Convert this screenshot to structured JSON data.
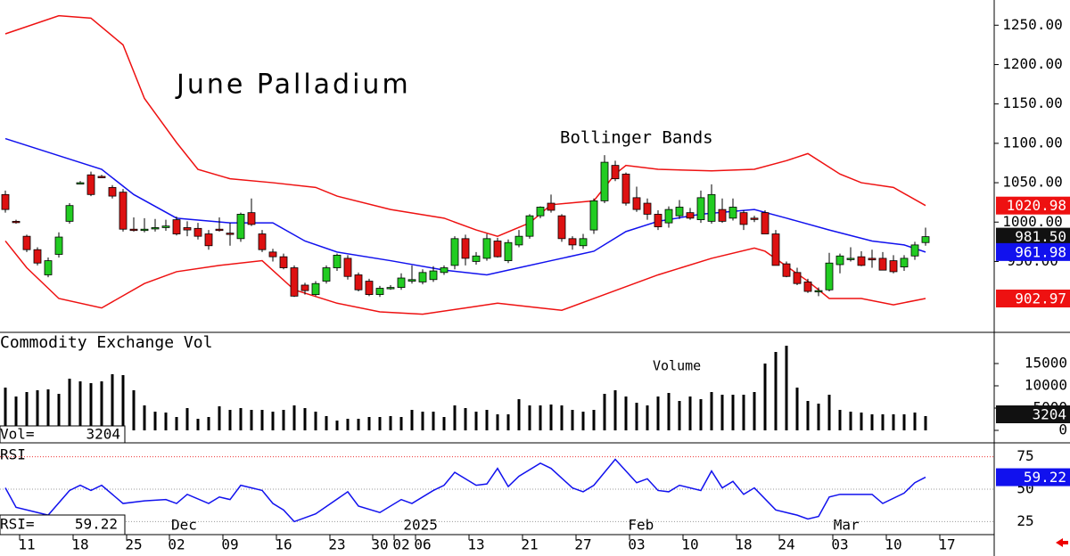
{
  "x_axis": {
    "xlim": [
      -0.5,
      92.5
    ],
    "xticks": [
      {
        "value": 2,
        "label": "11"
      },
      {
        "value": 7,
        "label": "18"
      },
      {
        "value": 12,
        "label": "25"
      },
      {
        "value": 16,
        "label": "02"
      },
      {
        "value": 21,
        "label": "09"
      },
      {
        "value": 26,
        "label": "16"
      },
      {
        "value": 31,
        "label": "23"
      },
      {
        "value": 35,
        "label": "30"
      },
      {
        "value": 37,
        "label": "02"
      },
      {
        "value": 39,
        "label": "06"
      },
      {
        "value": 44,
        "label": "13"
      },
      {
        "value": 49,
        "label": "21"
      },
      {
        "value": 54,
        "label": "27"
      },
      {
        "value": 59,
        "label": "03"
      },
      {
        "value": 64,
        "label": "10"
      },
      {
        "value": 69,
        "label": "18"
      },
      {
        "value": 73,
        "label": "24"
      },
      {
        "value": 78,
        "label": "03"
      },
      {
        "value": 83,
        "label": "10"
      },
      {
        "value": 88,
        "label": "17"
      }
    ],
    "month_labels": [
      {
        "value": 16.7,
        "label": "Dec"
      },
      {
        "value": 38.8,
        "label": "2025"
      },
      {
        "value": 59.4,
        "label": "Feb"
      },
      {
        "value": 78.6,
        "label": "Mar"
      }
    ]
  },
  "chart_data": [
    {
      "type": "candlestick",
      "title": "June Palladium",
      "annotation": "Bollinger Bands",
      "ylim": [
        860,
        1282
      ],
      "yticks": [
        {
          "value": 1250,
          "label": "1250.00"
        },
        {
          "value": 1200,
          "label": "1200.00"
        },
        {
          "value": 1150,
          "label": "1150.00"
        },
        {
          "value": 1100,
          "label": "1100.00"
        },
        {
          "value": 1050,
          "label": "1050.00"
        },
        {
          "value": 1000,
          "label": "1000.00"
        },
        {
          "value": 950,
          "label": "950.00"
        }
      ],
      "up_color": "#22cc22",
      "down_color": "#dd1111",
      "open": [
        1035,
        1001,
        982,
        965,
        933,
        959,
        1001,
        1050,
        1060,
        1058,
        1044,
        1038,
        991,
        990,
        992,
        993,
        1003,
        993,
        992,
        985,
        991,
        986,
        979,
        1012,
        985,
        962,
        956,
        942,
        920,
        908,
        925,
        942,
        954,
        933,
        925,
        908,
        917,
        917,
        925,
        924,
        927,
        936,
        945,
        979,
        950,
        954,
        976,
        951,
        971,
        982,
        1008,
        1024,
        1008,
        979,
        970,
        990,
        1027,
        1072,
        1061,
        1031,
        1024,
        1010,
        999,
        1008,
        1012,
        1003,
        1001,
        1016,
        1005,
        1012,
        1005,
        1012,
        985,
        947,
        936,
        924,
        913,
        914,
        946,
        954,
        956,
        954,
        954,
        951,
        943,
        957,
        974
      ],
      "high": [
        1040,
        1003,
        984,
        968,
        955,
        987,
        1024,
        1052,
        1064,
        1060,
        1047,
        1042,
        1006,
        1005,
        1004,
        1003,
        1007,
        1001,
        999,
        990,
        1006,
        999,
        1012,
        1030,
        990,
        966,
        960,
        945,
        923,
        925,
        945,
        960,
        958,
        936,
        928,
        919,
        920,
        935,
        945,
        940,
        944,
        945,
        982,
        984,
        962,
        985,
        980,
        978,
        990,
        1010,
        1020,
        1035,
        1010,
        982,
        985,
        1030,
        1085,
        1078,
        1063,
        1045,
        1030,
        1015,
        1020,
        1028,
        1018,
        1040,
        1048,
        1030,
        1030,
        1015,
        1008,
        1015,
        990,
        950,
        942,
        928,
        917,
        961,
        960,
        968,
        963,
        965,
        962,
        958,
        958,
        975,
        993
      ],
      "low": [
        1012,
        998,
        962,
        945,
        930,
        955,
        998,
        1048,
        1033,
        1056,
        1030,
        988,
        988,
        987,
        988,
        989,
        983,
        982,
        978,
        965,
        988,
        970,
        975,
        995,
        962,
        950,
        940,
        905,
        908,
        906,
        922,
        938,
        927,
        912,
        906,
        905,
        914,
        914,
        922,
        921,
        924,
        933,
        940,
        945,
        946,
        951,
        955,
        948,
        968,
        979,
        1005,
        1012,
        975,
        965,
        966,
        985,
        1024,
        1052,
        1021,
        1013,
        1003,
        990,
        993,
        1004,
        1003,
        999,
        998,
        999,
        1002,
        990,
        1000,
        985,
        945,
        930,
        920,
        910,
        906,
        912,
        935,
        950,
        944,
        942,
        939,
        935,
        938,
        952,
        970
      ],
      "close": [
        1016,
        1000,
        965,
        948,
        951,
        981,
        1021,
        1050,
        1035,
        1057,
        1033,
        991,
        990,
        991,
        993,
        995,
        985,
        990,
        982,
        970,
        990,
        985,
        1010,
        997,
        965,
        956,
        942,
        906,
        913,
        922,
        942,
        958,
        931,
        914,
        908,
        916,
        917,
        929,
        927,
        936,
        938,
        942,
        979,
        954,
        957,
        979,
        956,
        974,
        982,
        1008,
        1019,
        1015,
        979,
        971,
        979,
        1027,
        1076,
        1055,
        1024,
        1016,
        1010,
        994,
        1016,
        1019,
        1005,
        1031,
        1035,
        1001,
        1019,
        997,
        1004,
        985,
        945,
        931,
        922,
        912,
        913,
        948,
        957,
        954,
        945,
        952,
        939,
        937,
        954,
        971,
        981.5
      ],
      "series": [
        {
          "color": "#ee1111",
          "x": [
            0,
            5,
            8,
            11,
            13,
            16,
            18,
            21,
            25,
            29,
            31,
            36,
            41,
            44,
            46,
            49,
            51,
            55,
            57,
            58,
            61,
            66,
            70,
            73,
            75,
            78,
            80,
            83,
            86
          ],
          "values": [
            1239,
            1262,
            1259,
            1225,
            1157,
            1101,
            1067,
            1055,
            1050,
            1044,
            1033,
            1016,
            1005,
            990,
            982,
            999,
            1022,
            1027,
            1061,
            1072,
            1067,
            1065,
            1067,
            1078,
            1087,
            1061,
            1050,
            1044,
            1020.98
          ]
        },
        {
          "color": "#1111ee",
          "x": [
            0,
            6,
            9,
            12,
            16,
            21,
            25,
            28,
            31,
            36,
            41,
            45,
            48,
            51,
            55,
            58,
            61,
            65,
            70,
            73,
            77,
            81,
            84,
            86
          ],
          "values": [
            1106,
            1080,
            1067,
            1035,
            1005,
            999,
            999,
            976,
            962,
            951,
            939,
            933,
            942,
            951,
            963,
            988,
            1001,
            1010,
            1016,
            1005,
            990,
            976,
            971,
            961.98
          ]
        },
        {
          "color": "#ee1111",
          "x": [
            0,
            2,
            5,
            9,
            13,
            16,
            20,
            24,
            27,
            31,
            35,
            39,
            43,
            46,
            50,
            52,
            56,
            61,
            66,
            70,
            71,
            75,
            77,
            80,
            83,
            86
          ],
          "values": [
            976,
            942,
            903,
            891,
            922,
            937,
            945,
            951,
            914,
            897,
            886,
            883,
            891,
            897,
            891,
            888,
            908,
            933,
            954,
            967,
            963,
            925,
            903,
            903,
            895,
            902.97
          ]
        }
      ],
      "last_labels": [
        {
          "value": 1020.98,
          "label": "1020.98",
          "color": "#ee1111"
        },
        {
          "value": 981.5,
          "label": "981.50",
          "color": "#111111"
        },
        {
          "value": 961.98,
          "label": "961.98",
          "color": "#1111ee"
        },
        {
          "value": 902.97,
          "label": "902.97",
          "color": "#ee1111"
        }
      ]
    },
    {
      "type": "bar",
      "title": "Commodity Exchange Vol",
      "annotation": "Volume",
      "readout_label": "Vol=",
      "color": "#000000",
      "ylim": [
        0,
        21600
      ],
      "yticks": [
        15000,
        10000,
        5000,
        0
      ],
      "values": [
        9600,
        7600,
        8600,
        9000,
        9200,
        8200,
        11600,
        11000,
        10600,
        11000,
        12600,
        12400,
        9000,
        5600,
        4200,
        4000,
        3000,
        5000,
        2600,
        3000,
        5400,
        4600,
        5000,
        4600,
        4600,
        4200,
        4600,
        5600,
        5000,
        4200,
        3200,
        2200,
        2600,
        2600,
        3000,
        3000,
        3200,
        3000,
        4600,
        4200,
        4200,
        3000,
        5600,
        5000,
        4200,
        4600,
        3600,
        3600,
        7000,
        5600,
        5600,
        5800,
        5600,
        4600,
        4200,
        4600,
        8200,
        9000,
        7600,
        6200,
        5600,
        7600,
        8400,
        6600,
        7600,
        7000,
        8600,
        8000,
        8000,
        8000,
        8600,
        15000,
        17600,
        19000,
        9600,
        6600,
        6000,
        8000,
        4600,
        4200,
        4000,
        3600,
        3600,
        3600,
        3600,
        4000,
        3204
      ]
    },
    {
      "type": "line",
      "title": "RSI",
      "readout_label": "RSI=",
      "color": "#1111ee",
      "ylim": [
        15,
        85
      ],
      "yticks": [
        75,
        50,
        25
      ],
      "x": [
        0,
        1,
        4,
        6,
        7,
        8,
        9,
        11,
        13,
        15,
        16,
        17,
        19,
        20,
        21,
        22,
        24,
        25,
        26,
        27,
        29,
        32,
        33,
        35,
        37,
        38,
        40,
        41,
        42,
        44,
        45,
        46,
        47,
        48,
        50,
        51,
        53,
        54,
        55,
        57,
        59,
        60,
        61,
        62,
        63,
        65,
        66,
        67,
        68,
        69,
        70,
        72,
        74,
        75,
        76,
        77,
        78,
        81,
        82,
        84,
        85,
        86
      ],
      "values": [
        51,
        36,
        30,
        49,
        53,
        49,
        53,
        39,
        41,
        42,
        39,
        46,
        39,
        44,
        42,
        53,
        49,
        39,
        34,
        25,
        31,
        48,
        37,
        32,
        42,
        39,
        49,
        53,
        63,
        53,
        54,
        66,
        52,
        60,
        70,
        66,
        51,
        48,
        53,
        73,
        55,
        58,
        49,
        48,
        53,
        49,
        64,
        51,
        56,
        46,
        51,
        34,
        30,
        27,
        29,
        44,
        46,
        46,
        39,
        47,
        55,
        59.22
      ]
    }
  ]
}
